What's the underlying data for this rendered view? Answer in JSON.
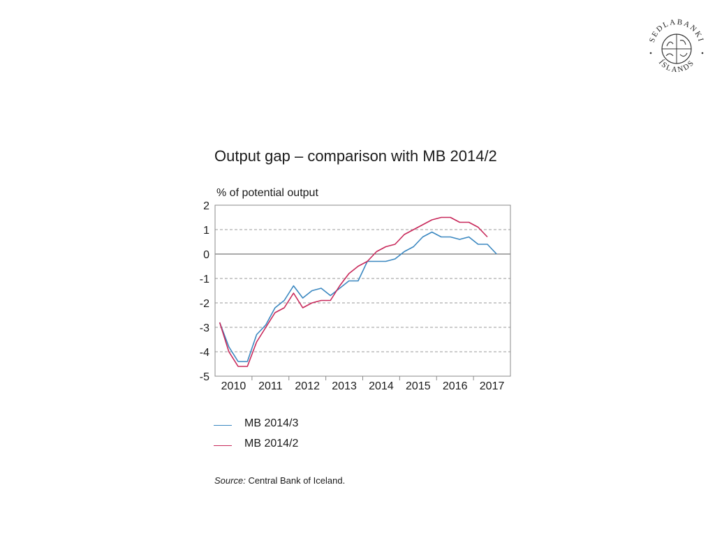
{
  "logo": {
    "top_text": "SEDLABANKI",
    "bottom_text": "ÍSLANDS"
  },
  "source": {
    "label": "Source:",
    "text": "Central Bank of Iceland."
  },
  "colors": {
    "mb2014_3": "#3a87c0",
    "mb2014_2": "#c8285a",
    "gridline": "#777777",
    "axis": "#8a8a8a"
  },
  "chart_data": {
    "type": "line",
    "title": "Output gap – comparison with MB 2014/2",
    "ylabel": "% of potential output",
    "xlabel": "",
    "ylim": [
      -5,
      2
    ],
    "yticks": [
      2,
      1,
      0,
      -1,
      -2,
      -3,
      -4,
      -5
    ],
    "grid": "dashed horizontal at integer values",
    "x_tick_labels": [
      "2010",
      "2011",
      "2012",
      "2013",
      "2014",
      "2015",
      "2016",
      "2017"
    ],
    "x_frequency": "quarterly",
    "x": [
      "2010Q1",
      "2010Q2",
      "2010Q3",
      "2010Q4",
      "2011Q1",
      "2011Q2",
      "2011Q3",
      "2011Q4",
      "2012Q1",
      "2012Q2",
      "2012Q3",
      "2012Q4",
      "2013Q1",
      "2013Q2",
      "2013Q3",
      "2013Q4",
      "2014Q1",
      "2014Q2",
      "2014Q3",
      "2014Q4",
      "2015Q1",
      "2015Q2",
      "2015Q3",
      "2015Q4",
      "2016Q1",
      "2016Q2",
      "2016Q3",
      "2016Q4",
      "2017Q1",
      "2017Q2",
      "2017Q3",
      "2017Q4"
    ],
    "legend_position": "below",
    "series": [
      {
        "name": "MB 2014/3",
        "values": [
          -2.8,
          -3.8,
          -4.4,
          -4.4,
          -3.3,
          -2.9,
          -2.2,
          -1.9,
          -1.3,
          -1.8,
          -1.5,
          -1.4,
          -1.7,
          -1.4,
          -1.1,
          -1.1,
          -0.3,
          -0.3,
          -0.3,
          -0.2,
          0.1,
          0.3,
          0.7,
          0.9,
          0.7,
          0.7,
          0.6,
          0.7,
          0.4,
          0.4,
          0.0,
          null
        ]
      },
      {
        "name": "MB 2014/2",
        "values": [
          -2.8,
          -4.0,
          -4.6,
          -4.6,
          -3.6,
          -3.0,
          -2.4,
          -2.2,
          -1.6,
          -2.2,
          -2.0,
          -1.9,
          -1.9,
          -1.3,
          -0.8,
          -0.5,
          -0.3,
          0.1,
          0.3,
          0.4,
          0.8,
          1.0,
          1.2,
          1.4,
          1.5,
          1.5,
          1.3,
          1.3,
          1.1,
          0.7,
          null,
          null
        ]
      }
    ]
  }
}
